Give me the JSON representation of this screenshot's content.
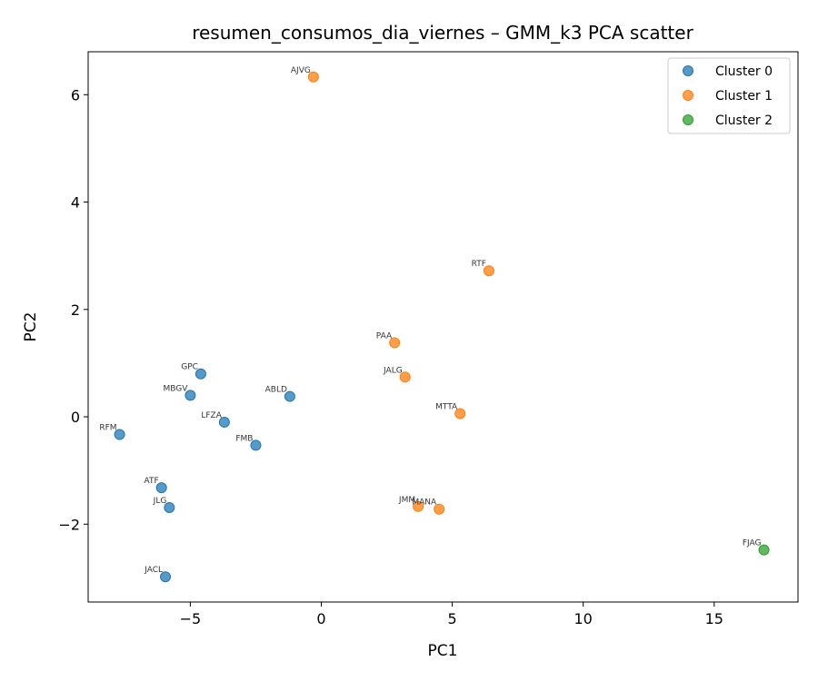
{
  "chart_data": {
    "type": "scatter",
    "title": "resumen_consumos_dia_viernes – GMM_k3 PCA scatter",
    "xlabel": "PC1",
    "ylabel": "PC2",
    "xlim": [
      -8.9,
      18.2
    ],
    "ylim": [
      -3.45,
      6.8
    ],
    "xticks": [
      -5,
      0,
      5,
      10,
      15
    ],
    "xtick_labels": [
      "−5",
      "0",
      "5",
      "10",
      "15"
    ],
    "yticks": [
      -2,
      0,
      2,
      4,
      6
    ],
    "ytick_labels": [
      "−2",
      "0",
      "2",
      "4",
      "6"
    ],
    "grid": false,
    "legend_position": "top-right",
    "series": [
      {
        "name": "Cluster 0",
        "color": "#1f77b4",
        "points": [
          {
            "label": "GPC",
            "x": -4.6,
            "y": 0.8
          },
          {
            "label": "MBGV",
            "x": -5.0,
            "y": 0.4
          },
          {
            "label": "ABLD",
            "x": -1.2,
            "y": 0.38
          },
          {
            "label": "LFZA",
            "x": -3.7,
            "y": -0.1
          },
          {
            "label": "RFM",
            "x": -7.7,
            "y": -0.33
          },
          {
            "label": "FMB",
            "x": -2.5,
            "y": -0.53
          },
          {
            "label": "ATF",
            "x": -6.1,
            "y": -1.32
          },
          {
            "label": "JLG",
            "x": -5.8,
            "y": -1.69
          },
          {
            "label": "JACL",
            "x": -5.95,
            "y": -2.98
          }
        ]
      },
      {
        "name": "Cluster 1",
        "color": "#ff7f0e",
        "points": [
          {
            "label": "AJVG",
            "x": -0.3,
            "y": 6.33
          },
          {
            "label": "RTF",
            "x": 6.4,
            "y": 2.72
          },
          {
            "label": "PAA",
            "x": 2.8,
            "y": 1.38
          },
          {
            "label": "JALG",
            "x": 3.2,
            "y": 0.74
          },
          {
            "label": "MTTA",
            "x": 5.3,
            "y": 0.06
          },
          {
            "label": "JMM",
            "x": 3.7,
            "y": -1.67
          },
          {
            "label": "MANA",
            "x": 4.5,
            "y": -1.72
          }
        ]
      },
      {
        "name": "Cluster 2",
        "color": "#2ca02c",
        "points": [
          {
            "label": "FJAG",
            "x": 16.9,
            "y": -2.48
          }
        ]
      }
    ]
  }
}
